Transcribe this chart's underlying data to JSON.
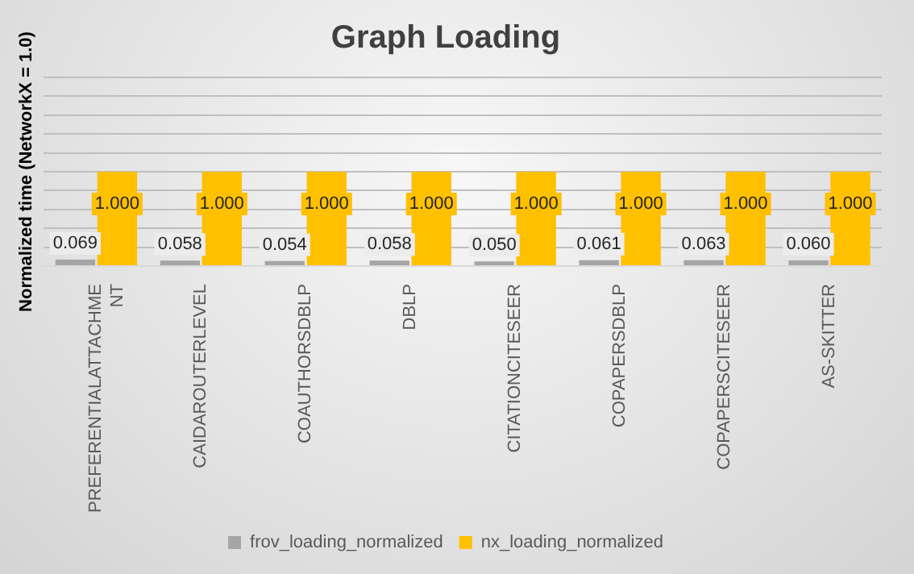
{
  "chart_data": {
    "type": "bar",
    "title": "Graph Loading",
    "ylabel": "Normalized time (NetworkX = 1.0)",
    "categories": [
      "PREFERENTIALATTACHMENT",
      "CAIDAROUTERLEVEL",
      "COAUTHORSDBLP",
      "DBLP",
      "CITATIONCITESEER",
      "COPAPERSDBLP",
      "COPAPERSCITESEER",
      "AS-SKITTER"
    ],
    "series": [
      {
        "name": "frov_loading_normalized",
        "color": "#a5a5a5",
        "values": [
          0.069,
          0.058,
          0.054,
          0.058,
          0.05,
          0.061,
          0.063,
          0.06
        ],
        "value_labels": [
          "0.069",
          "0.058",
          "0.054",
          "0.058",
          "0.050",
          "0.061",
          "0.063",
          "0.060"
        ]
      },
      {
        "name": "nx_loading_normalized",
        "color": "#ffc000",
        "values": [
          1.0,
          1.0,
          1.0,
          1.0,
          1.0,
          1.0,
          1.0,
          1.0
        ],
        "value_labels": [
          "1.000",
          "1.000",
          "1.000",
          "1.000",
          "1.000",
          "1.000",
          "1.000",
          "1.000"
        ]
      }
    ],
    "ylim": [
      0,
      2.0
    ],
    "yticks": [
      {
        "value": 0,
        "label": null
      },
      {
        "value": 0.2,
        "label": null
      },
      {
        "value": 0.4,
        "label": null
      },
      {
        "value": 0.6,
        "label": null
      },
      {
        "value": 0.8,
        "label": null
      },
      {
        "value": 1.0,
        "label": null
      },
      {
        "value": 1.2,
        "label": null
      },
      {
        "value": 1.4,
        "label": null
      },
      {
        "value": 1.6,
        "label": null
      },
      {
        "value": 1.8,
        "label": null
      },
      {
        "value": 2.0,
        "label": null
      }
    ],
    "grid": "y",
    "legend": "bottom",
    "tick_labels": "x"
  }
}
